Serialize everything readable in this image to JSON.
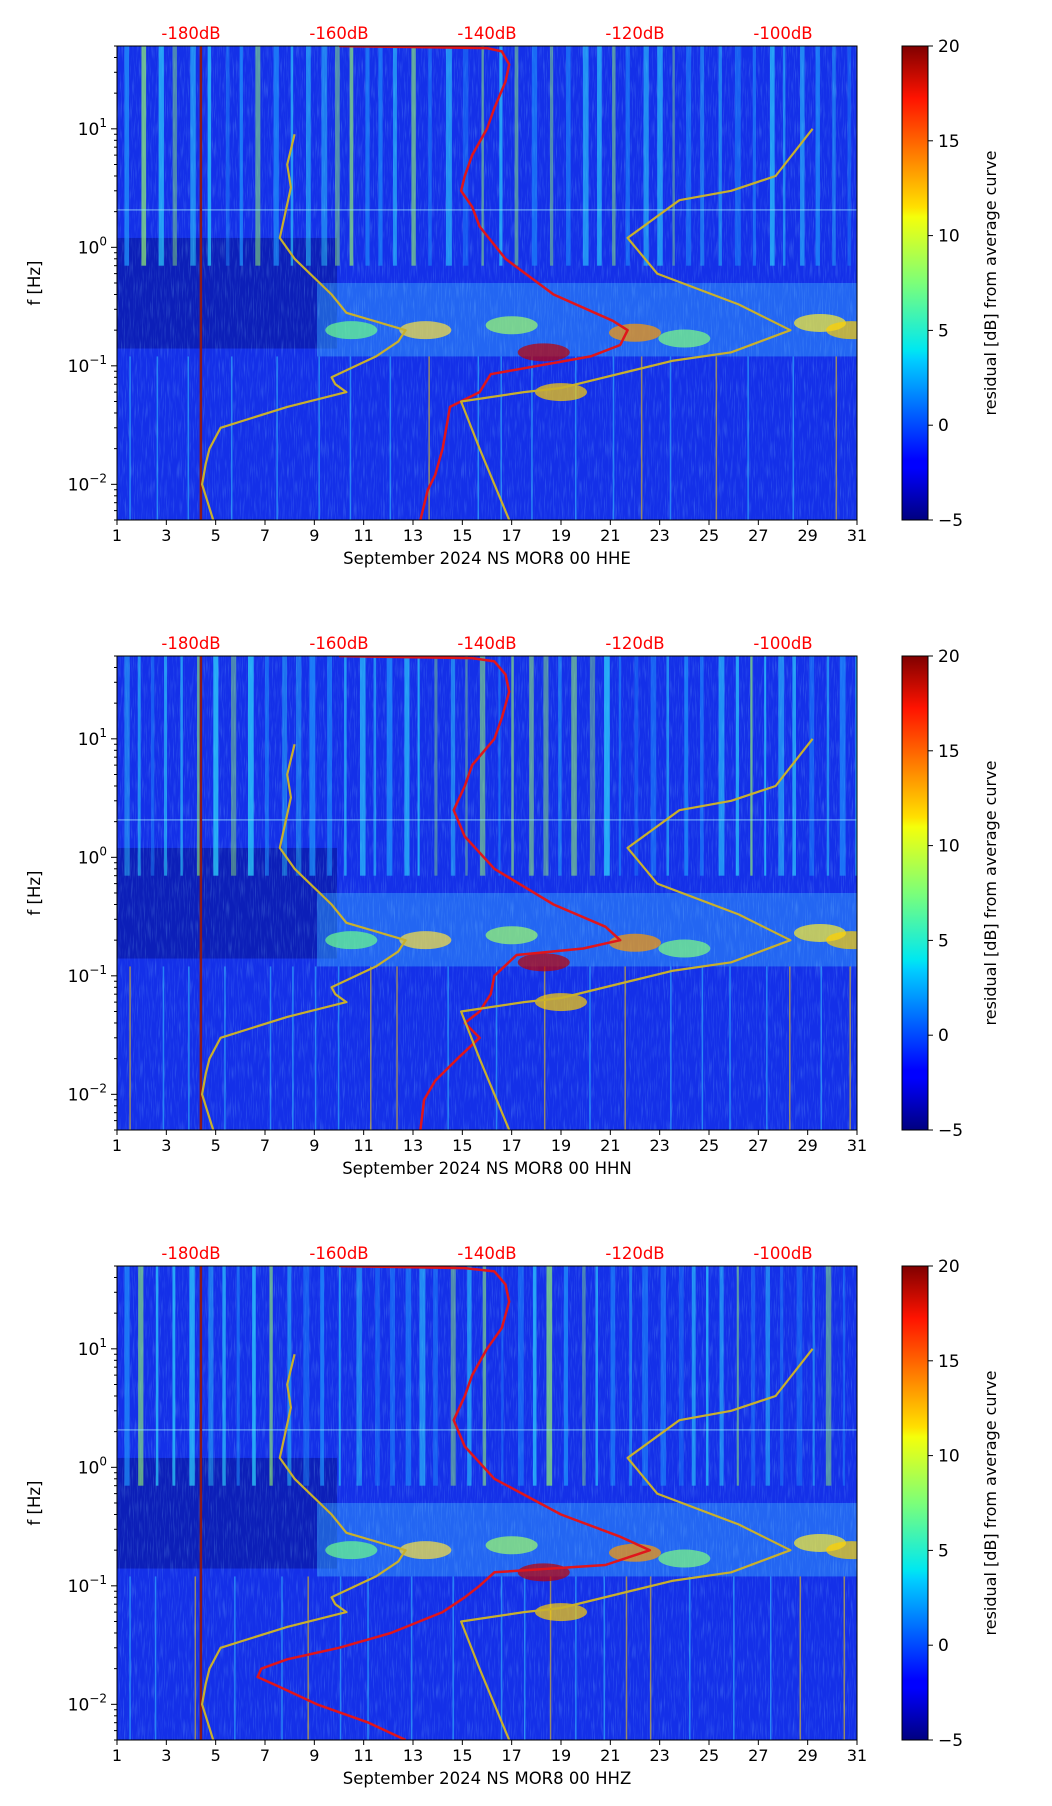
{
  "chart_data": [
    {
      "type": "heatmap",
      "title": "September 2024 NS MOR8 00 HHE",
      "xlabel": "September 2024 NS MOR8 00 HHE",
      "ylabel": "f [Hz]",
      "xlim": [
        1,
        31
      ],
      "xticks": [
        "1",
        "3",
        "5",
        "7",
        "9",
        "11",
        "13",
        "15",
        "17",
        "19",
        "21",
        "23",
        "25",
        "27",
        "29",
        "31"
      ],
      "ylim": [
        0.005,
        50
      ],
      "yscale": "log",
      "yticks": [
        {
          "value": 0.01,
          "base": "10",
          "exp": "−2"
        },
        {
          "value": 0.1,
          "base": "10",
          "exp": "−1"
        },
        {
          "value": 1,
          "base": "10",
          "exp": "0"
        },
        {
          "value": 10,
          "base": "10",
          "exp": "1"
        }
      ],
      "top_axis_labels": [
        "-180dB",
        "-160dB",
        "-140dB",
        "-120dB",
        "-100dB"
      ],
      "top_axis_db": [
        -180,
        -160,
        -140,
        -120,
        -100
      ],
      "colorbar": {
        "label": "residual [dB] from average curve",
        "range": [
          -5,
          20
        ],
        "ticks": [
          "−5",
          "0",
          "5",
          "10",
          "15",
          "20"
        ],
        "tick_values": [
          -5,
          0,
          5,
          10,
          15,
          20
        ],
        "colormap": "jet"
      },
      "series": [
        {
          "name": "average PSD",
          "color": "#e0151b",
          "points": [
            [
              -149,
              0.005
            ],
            [
              -148,
              0.009
            ],
            [
              -147,
              0.012
            ],
            [
              -146,
              0.02
            ],
            [
              -145.5,
              0.03
            ],
            [
              -145,
              0.045
            ],
            [
              -141,
              0.06
            ],
            [
              -139.5,
              0.085
            ],
            [
              -126,
              0.12
            ],
            [
              -122,
              0.15
            ],
            [
              -121,
              0.2
            ],
            [
              -123,
              0.24
            ],
            [
              -131,
              0.4
            ],
            [
              -137.5,
              0.8
            ],
            [
              -141,
              1.5
            ],
            [
              -142,
              2.2
            ],
            [
              -143.5,
              3
            ],
            [
              -143,
              4
            ],
            [
              -142,
              6
            ],
            [
              -140,
              10
            ],
            [
              -139,
              15
            ],
            [
              -137.5,
              25
            ],
            [
              -137,
              35
            ],
            [
              -138,
              45
            ],
            [
              -140,
              48
            ],
            [
              -150,
              49
            ],
            [
              -160,
              50
            ]
          ]
        },
        {
          "name": "NLNM",
          "color": "#c9b02c",
          "points": [
            [
              -177,
              0.005
            ],
            [
              -178.5,
              0.01
            ],
            [
              -178,
              0.015
            ],
            [
              -177.5,
              0.02
            ],
            [
              -176,
              0.03
            ],
            [
              -167,
              0.045
            ],
            [
              -159,
              0.06
            ],
            [
              -160.5,
              0.07
            ],
            [
              -161,
              0.08
            ],
            [
              -155,
              0.12
            ],
            [
              -152,
              0.16
            ],
            [
              -151,
              0.2
            ],
            [
              -159,
              0.28
            ],
            [
              -161,
              0.4
            ],
            [
              -166,
              0.8
            ],
            [
              -168,
              1.2
            ],
            [
              -166.5,
              3.2
            ],
            [
              -167,
              5
            ],
            [
              -166,
              9
            ]
          ]
        },
        {
          "name": "NHNM",
          "color": "#c9b02c",
          "points": [
            [
              -137,
              0.005
            ],
            [
              -141,
              0.02
            ],
            [
              -143.5,
              0.05
            ],
            [
              -135,
              0.06
            ],
            [
              -130,
              0.065
            ],
            [
              -115,
              0.11
            ],
            [
              -107,
              0.13
            ],
            [
              -99,
              0.2
            ],
            [
              -106,
              0.33
            ],
            [
              -117,
              0.6
            ],
            [
              -121,
              1.2
            ],
            [
              -114,
              2.5
            ],
            [
              -107,
              3
            ],
            [
              -101,
              4
            ],
            [
              -96,
              10
            ]
          ]
        }
      ]
    },
    {
      "type": "heatmap",
      "title": "September 2024 NS MOR8 00 HHN",
      "xlabel": "September 2024 NS MOR8 00 HHN",
      "ylabel": "f [Hz]",
      "xlim": [
        1,
        31
      ],
      "xticks": [
        "1",
        "3",
        "5",
        "7",
        "9",
        "11",
        "13",
        "15",
        "17",
        "19",
        "21",
        "23",
        "25",
        "27",
        "29",
        "31"
      ],
      "ylim": [
        0.005,
        50
      ],
      "yscale": "log",
      "yticks": [
        {
          "value": 0.01,
          "base": "10",
          "exp": "−2"
        },
        {
          "value": 0.1,
          "base": "10",
          "exp": "−1"
        },
        {
          "value": 1,
          "base": "10",
          "exp": "0"
        },
        {
          "value": 10,
          "base": "10",
          "exp": "1"
        }
      ],
      "top_axis_labels": [
        "-180dB",
        "-160dB",
        "-140dB",
        "-120dB",
        "-100dB"
      ],
      "top_axis_db": [
        -180,
        -160,
        -140,
        -120,
        -100
      ],
      "colorbar": {
        "label": "residual [dB] from average curve",
        "range": [
          -5,
          20
        ],
        "ticks": [
          "−5",
          "0",
          "5",
          "10",
          "15",
          "20"
        ],
        "tick_values": [
          -5,
          0,
          5,
          10,
          15,
          20
        ],
        "colormap": "jet"
      },
      "series": [
        {
          "name": "average PSD",
          "color": "#e0151b",
          "points": [
            [
              -149,
              0.005
            ],
            [
              -148.5,
              0.009
            ],
            [
              -147,
              0.013
            ],
            [
              -144,
              0.02
            ],
            [
              -141,
              0.03
            ],
            [
              -143,
              0.04
            ],
            [
              -141,
              0.05
            ],
            [
              -139.5,
              0.07
            ],
            [
              -139,
              0.1
            ],
            [
              -136,
              0.15
            ],
            [
              -127,
              0.17
            ],
            [
              -122,
              0.2
            ],
            [
              -124,
              0.26
            ],
            [
              -131,
              0.4
            ],
            [
              -139,
              0.8
            ],
            [
              -143,
              1.5
            ],
            [
              -144.5,
              2.5
            ],
            [
              -143,
              4
            ],
            [
              -142,
              6
            ],
            [
              -139,
              10
            ],
            [
              -138,
              15
            ],
            [
              -137,
              25
            ],
            [
              -137.5,
              35
            ],
            [
              -139,
              45
            ],
            [
              -142,
              48
            ],
            [
              -152,
              49
            ],
            [
              -160,
              50
            ]
          ]
        },
        {
          "name": "NLNM",
          "color": "#c9b02c",
          "points": [
            [
              -177,
              0.005
            ],
            [
              -178.5,
              0.01
            ],
            [
              -178,
              0.015
            ],
            [
              -177.5,
              0.02
            ],
            [
              -176,
              0.03
            ],
            [
              -167,
              0.045
            ],
            [
              -159,
              0.06
            ],
            [
              -160.5,
              0.07
            ],
            [
              -161,
              0.08
            ],
            [
              -155,
              0.12
            ],
            [
              -152,
              0.16
            ],
            [
              -151,
              0.2
            ],
            [
              -159,
              0.28
            ],
            [
              -161,
              0.4
            ],
            [
              -166,
              0.8
            ],
            [
              -168,
              1.2
            ],
            [
              -166.5,
              3.2
            ],
            [
              -167,
              5
            ],
            [
              -166,
              9
            ]
          ]
        },
        {
          "name": "NHNM",
          "color": "#c9b02c",
          "points": [
            [
              -137,
              0.005
            ],
            [
              -141,
              0.02
            ],
            [
              -143.5,
              0.05
            ],
            [
              -135,
              0.06
            ],
            [
              -130,
              0.065
            ],
            [
              -115,
              0.11
            ],
            [
              -107,
              0.13
            ],
            [
              -99,
              0.2
            ],
            [
              -106,
              0.33
            ],
            [
              -117,
              0.6
            ],
            [
              -121,
              1.2
            ],
            [
              -114,
              2.5
            ],
            [
              -107,
              3
            ],
            [
              -101,
              4
            ],
            [
              -96,
              10
            ]
          ]
        }
      ]
    },
    {
      "type": "heatmap",
      "title": "September 2024 NS MOR8 00 HHZ",
      "xlabel": "September 2024 NS MOR8 00 HHZ",
      "ylabel": "f [Hz]",
      "xlim": [
        1,
        31
      ],
      "xticks": [
        "1",
        "3",
        "5",
        "7",
        "9",
        "11",
        "13",
        "15",
        "17",
        "19",
        "21",
        "23",
        "25",
        "27",
        "29",
        "31"
      ],
      "ylim": [
        0.005,
        50
      ],
      "yscale": "log",
      "yticks": [
        {
          "value": 0.01,
          "base": "10",
          "exp": "−2"
        },
        {
          "value": 0.1,
          "base": "10",
          "exp": "−1"
        },
        {
          "value": 1,
          "base": "10",
          "exp": "0"
        },
        {
          "value": 10,
          "base": "10",
          "exp": "1"
        }
      ],
      "top_axis_labels": [
        "-180dB",
        "-160dB",
        "-140dB",
        "-120dB",
        "-100dB"
      ],
      "top_axis_db": [
        -180,
        -160,
        -140,
        -120,
        -100
      ],
      "colorbar": {
        "label": "residual [dB] from average curve",
        "range": [
          -5,
          20
        ],
        "ticks": [
          "−5",
          "0",
          "5",
          "10",
          "15",
          "20"
        ],
        "tick_values": [
          -5,
          0,
          5,
          10,
          15,
          20
        ],
        "colormap": "jet"
      },
      "series": [
        {
          "name": "average PSD",
          "color": "#e0151b",
          "points": [
            [
              -151,
              0.005
            ],
            [
              -156,
              0.007
            ],
            [
              -163,
              0.01
            ],
            [
              -168,
              0.014
            ],
            [
              -171,
              0.017
            ],
            [
              -170.5,
              0.02
            ],
            [
              -167,
              0.024
            ],
            [
              -160,
              0.03
            ],
            [
              -153,
              0.04
            ],
            [
              -146,
              0.06
            ],
            [
              -143,
              0.08
            ],
            [
              -141,
              0.1
            ],
            [
              -139,
              0.13
            ],
            [
              -124,
              0.15
            ],
            [
              -118,
              0.2
            ],
            [
              -122,
              0.26
            ],
            [
              -130,
              0.4
            ],
            [
              -139,
              0.8
            ],
            [
              -143,
              1.5
            ],
            [
              -144.5,
              2.5
            ],
            [
              -143,
              4
            ],
            [
              -142,
              6
            ],
            [
              -140,
              10
            ],
            [
              -138,
              15
            ],
            [
              -137,
              25
            ],
            [
              -137.5,
              35
            ],
            [
              -139,
              45
            ],
            [
              -143,
              48
            ],
            [
              -152,
              49
            ],
            [
              -160,
              50
            ]
          ]
        },
        {
          "name": "NLNM",
          "color": "#c9b02c",
          "points": [
            [
              -177,
              0.005
            ],
            [
              -178.5,
              0.01
            ],
            [
              -178,
              0.015
            ],
            [
              -177.5,
              0.02
            ],
            [
              -176,
              0.03
            ],
            [
              -167,
              0.045
            ],
            [
              -159,
              0.06
            ],
            [
              -160.5,
              0.07
            ],
            [
              -161,
              0.08
            ],
            [
              -155,
              0.12
            ],
            [
              -152,
              0.16
            ],
            [
              -151,
              0.2
            ],
            [
              -159,
              0.28
            ],
            [
              -161,
              0.4
            ],
            [
              -166,
              0.8
            ],
            [
              -168,
              1.2
            ],
            [
              -166.5,
              3.2
            ],
            [
              -167,
              5
            ],
            [
              -166,
              9
            ]
          ]
        },
        {
          "name": "NHNM",
          "color": "#c9b02c",
          "points": [
            [
              -137,
              0.005
            ],
            [
              -141,
              0.02
            ],
            [
              -143.5,
              0.05
            ],
            [
              -135,
              0.06
            ],
            [
              -130,
              0.065
            ],
            [
              -115,
              0.11
            ],
            [
              -107,
              0.13
            ],
            [
              -99,
              0.2
            ],
            [
              -106,
              0.33
            ],
            [
              -117,
              0.6
            ],
            [
              -121,
              1.2
            ],
            [
              -114,
              2.5
            ],
            [
              -107,
              3
            ],
            [
              -101,
              4
            ],
            [
              -96,
              10
            ]
          ]
        }
      ]
    }
  ],
  "colors": {
    "top_axis_text": "#ff0000",
    "average_curve": "#e0151b",
    "noise_models": "#c9b02c",
    "vertical_marker": "#8b1a1a"
  }
}
